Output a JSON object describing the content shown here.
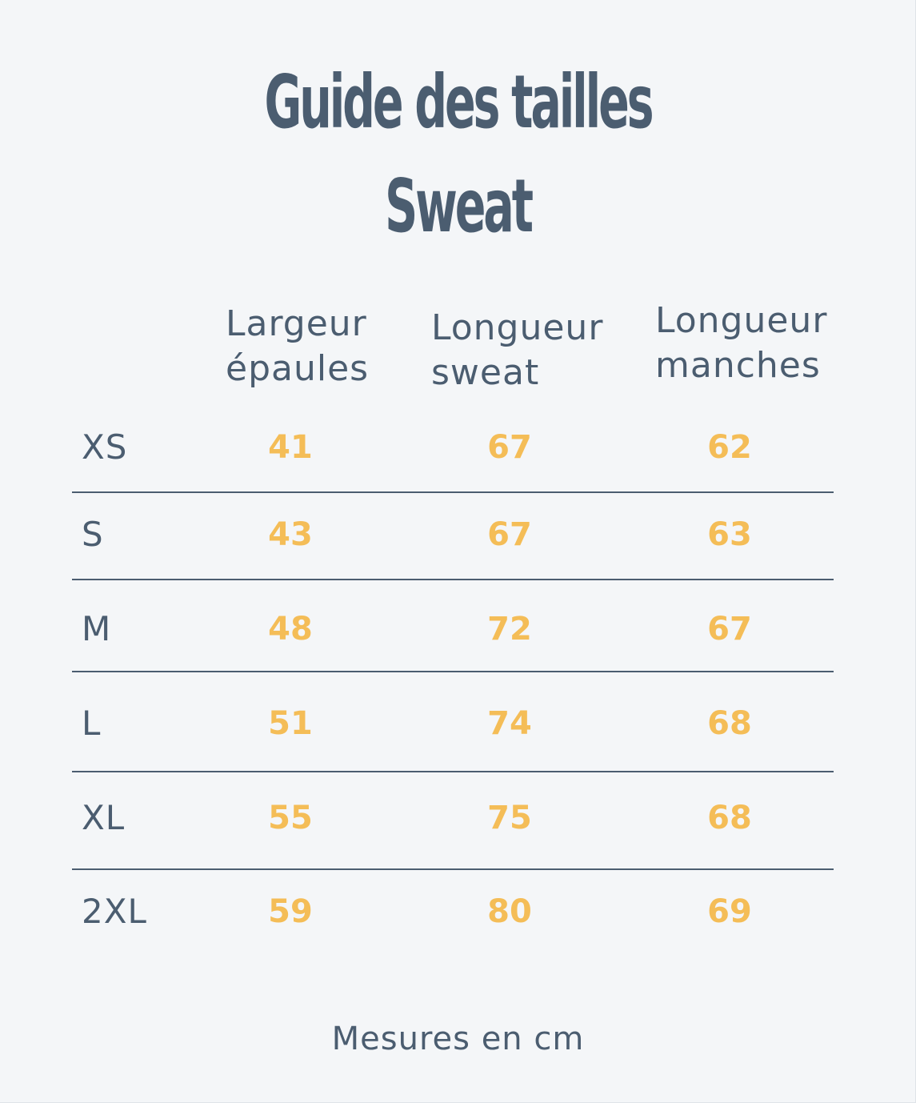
{
  "title": {
    "line1": "Guide des tailles",
    "line2": "Sweat"
  },
  "columns": [
    {
      "line1": "Largeur",
      "line2": "épaules"
    },
    {
      "line1": "Longueur",
      "line2": "sweat"
    },
    {
      "line1": "Longueur",
      "line2": "manches"
    }
  ],
  "rows": [
    {
      "size": "XS",
      "values": [
        "41",
        "67",
        "62"
      ]
    },
    {
      "size": "S",
      "values": [
        "43",
        "67",
        "63"
      ]
    },
    {
      "size": "M",
      "values": [
        "48",
        "72",
        "67"
      ]
    },
    {
      "size": "L",
      "values": [
        "51",
        "74",
        "68"
      ]
    },
    {
      "size": "XL",
      "values": [
        "55",
        "75",
        "68"
      ]
    },
    {
      "size": "2XL",
      "values": [
        "59",
        "80",
        "69"
      ]
    }
  ],
  "footer": "Mesures en cm",
  "colors": {
    "background": "#f4f6f8",
    "text": "#4b5d70",
    "accent": "#f4bd57"
  }
}
